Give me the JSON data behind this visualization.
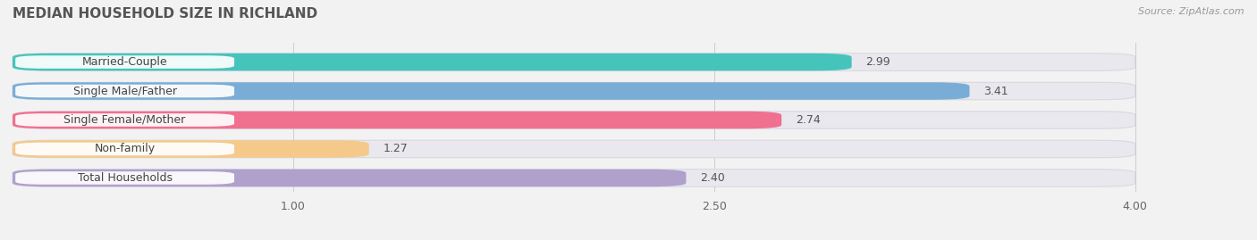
{
  "title": "MEDIAN HOUSEHOLD SIZE IN RICHLAND",
  "source": "Source: ZipAtlas.com",
  "categories": [
    "Married-Couple",
    "Single Male/Father",
    "Single Female/Mother",
    "Non-family",
    "Total Households"
  ],
  "values": [
    2.99,
    3.41,
    2.74,
    1.27,
    2.4
  ],
  "bar_colors": [
    "#45c4bc",
    "#7aadd6",
    "#f07090",
    "#f5c98a",
    "#b0a0cc"
  ],
  "xlim_start": 0.0,
  "xlim_end": 4.3,
  "x_axis_end": 4.0,
  "xticks": [
    1.0,
    2.5,
    4.0
  ],
  "background_color": "#f2f2f2",
  "bar_background": "#e8e8ee",
  "title_fontsize": 11,
  "source_fontsize": 8,
  "label_fontsize": 9,
  "value_fontsize": 9,
  "tick_fontsize": 9,
  "bar_height": 0.6,
  "bar_gap": 1.0
}
